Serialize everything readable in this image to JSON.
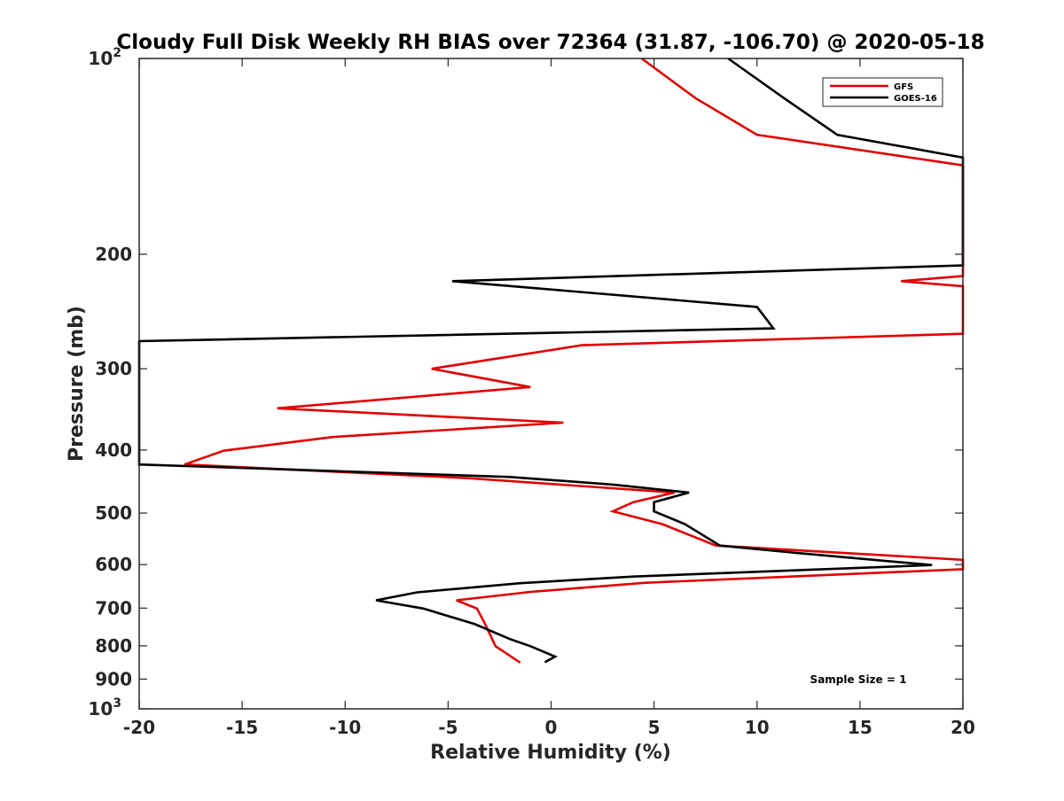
{
  "chart_data": {
    "type": "line",
    "title": "Cloudy Full Disk Weekly RH BIAS over 72364 (31.87, -106.70) @ 2020-05-18",
    "xlabel": "Relative Humidity (%)",
    "ylabel": "Pressure (mb)",
    "xlim": [
      -20,
      20
    ],
    "ylim": [
      100,
      1000
    ],
    "y_scale": "log",
    "y_reversed": true,
    "x_ticks": [
      -20,
      -15,
      -10,
      -5,
      0,
      5,
      10,
      15,
      20
    ],
    "x_tick_labels": [
      "-20",
      "-15",
      "-10",
      "-5",
      "0",
      "5",
      "10",
      "15",
      "20"
    ],
    "y_ticks": [
      100,
      200,
      300,
      400,
      500,
      600,
      700,
      800,
      900,
      1000
    ],
    "y_tick_labels": [
      {
        "base": "10",
        "exp": "2"
      },
      {
        "base": "200",
        "exp": ""
      },
      {
        "base": "300",
        "exp": ""
      },
      {
        "base": "400",
        "exp": ""
      },
      {
        "base": "500",
        "exp": ""
      },
      {
        "base": "600",
        "exp": ""
      },
      {
        "base": "700",
        "exp": ""
      },
      {
        "base": "800",
        "exp": ""
      },
      {
        "base": "900",
        "exp": ""
      },
      {
        "base": "10",
        "exp": "3"
      }
    ],
    "grid": false,
    "legend_position": "top-right",
    "annotation": "Sample Size = 1",
    "series": [
      {
        "name": "GFS",
        "color": "#e00000",
        "points": [
          [
            4.4,
            100
          ],
          [
            7.0,
            115
          ],
          [
            10.0,
            131
          ],
          [
            20.0,
            146
          ],
          [
            20.0,
            216
          ],
          [
            17.0,
            220
          ],
          [
            20.0,
            224
          ],
          [
            20.0,
            265
          ],
          [
            1.5,
            276
          ],
          [
            -5.8,
            300
          ],
          [
            -1.0,
            320
          ],
          [
            -13.3,
            345
          ],
          [
            0.6,
            363
          ],
          [
            -10.6,
            382
          ],
          [
            -15.9,
            401
          ],
          [
            -17.8,
            421
          ],
          [
            -4.0,
            442
          ],
          [
            6.0,
            465
          ],
          [
            4.0,
            481
          ],
          [
            3.0,
            497
          ],
          [
            5.4,
            520
          ],
          [
            8.0,
            561
          ],
          [
            20.0,
            590
          ],
          [
            20.0,
            610
          ],
          [
            4.6,
            640
          ],
          [
            -1.0,
            661
          ],
          [
            -4.6,
            681
          ],
          [
            -3.6,
            701
          ],
          [
            -3.2,
            741
          ],
          [
            -2.7,
            801
          ],
          [
            -1.5,
            849
          ]
        ]
      },
      {
        "name": "GOES-16",
        "color": "#000000",
        "points": [
          [
            8.6,
            100
          ],
          [
            11.3,
            115
          ],
          [
            13.9,
            131
          ],
          [
            20.0,
            142
          ],
          [
            20.0,
            208
          ],
          [
            -4.8,
            220
          ],
          [
            10.0,
            241
          ],
          [
            10.8,
            260
          ],
          [
            -20.0,
            272
          ],
          [
            -20.0,
            421
          ],
          [
            -2.0,
            440
          ],
          [
            3.0,
            452
          ],
          [
            6.7,
            465
          ],
          [
            5.0,
            481
          ],
          [
            5.0,
            497
          ],
          [
            6.5,
            520
          ],
          [
            8.2,
            561
          ],
          [
            12.0,
            576
          ],
          [
            18.5,
            601
          ],
          [
            4.0,
            626
          ],
          [
            -1.5,
            641
          ],
          [
            -6.5,
            662
          ],
          [
            -8.5,
            681
          ],
          [
            -6.2,
            701
          ],
          [
            -3.7,
            741
          ],
          [
            -2.0,
            781
          ],
          [
            -1.0,
            801
          ],
          [
            0.2,
            831
          ],
          [
            -0.3,
            848
          ]
        ]
      }
    ]
  }
}
